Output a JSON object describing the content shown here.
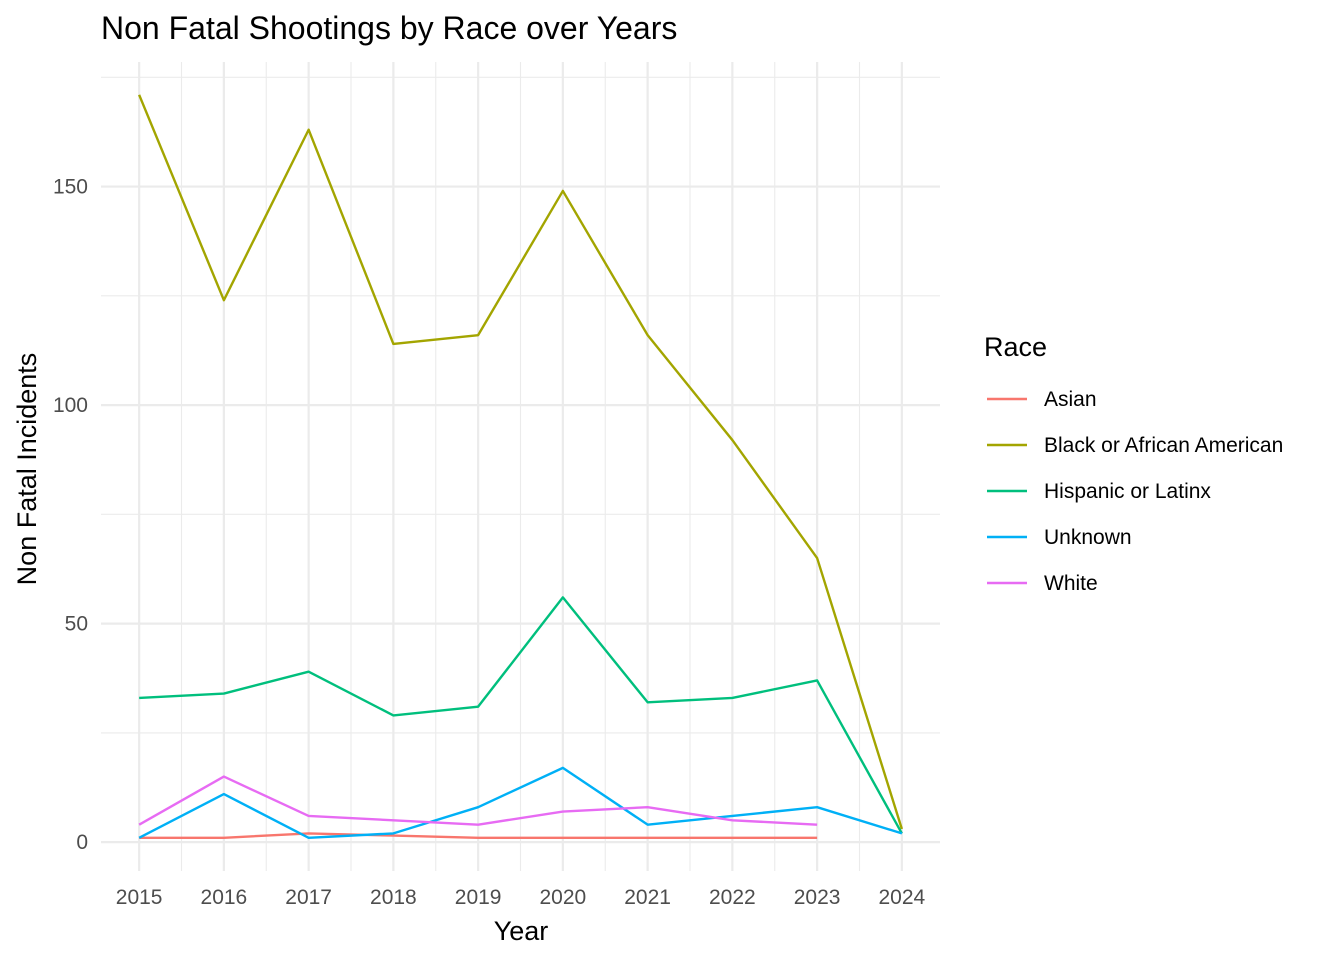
{
  "chart_data": {
    "type": "line",
    "title": "Non Fatal Shootings by Race over Years",
    "xlabel": "Year",
    "ylabel": "Non Fatal Incidents",
    "x": [
      2015,
      2016,
      2017,
      2018,
      2019,
      2020,
      2021,
      2022,
      2023,
      2024
    ],
    "x_tick_labels": [
      "2015",
      "2016",
      "2017",
      "2018",
      "2019",
      "2020",
      "2021",
      "2022",
      "2023",
      "2024"
    ],
    "y_ticks": [
      0,
      50,
      100,
      150
    ],
    "y_tick_labels": [
      "0",
      "50",
      "100",
      "150"
    ],
    "ylim": [
      -6.6,
      178.5
    ],
    "grid": true,
    "legend_title": "Race",
    "legend_position": "right",
    "series": [
      {
        "name": "Asian",
        "color": "#F8766D",
        "x": [
          2015,
          2016,
          2017,
          2018,
          2019,
          2020,
          2021,
          2022,
          2023
        ],
        "values": [
          1,
          1,
          2,
          1.5,
          1,
          1,
          1,
          1,
          1
        ]
      },
      {
        "name": "Black or African American",
        "color": "#A3A500",
        "x": [
          2015,
          2016,
          2017,
          2018,
          2019,
          2020,
          2021,
          2022,
          2023,
          2024
        ],
        "values": [
          171,
          124,
          163,
          114,
          116,
          149,
          116,
          92,
          65,
          3
        ]
      },
      {
        "name": "Hispanic or Latinx",
        "color": "#00BF7D",
        "x": [
          2015,
          2016,
          2017,
          2018,
          2019,
          2020,
          2021,
          2022,
          2023,
          2024
        ],
        "values": [
          33,
          34,
          39,
          29,
          31,
          56,
          32,
          33,
          37,
          2
        ]
      },
      {
        "name": "Unknown",
        "color": "#00B0F6",
        "x": [
          2015,
          2016,
          2017,
          2018,
          2019,
          2020,
          2021,
          2022,
          2023,
          2024
        ],
        "values": [
          1,
          11,
          1,
          2,
          8,
          17,
          4,
          6,
          8,
          2
        ]
      },
      {
        "name": "White",
        "color": "#E76BF3",
        "x": [
          2015,
          2016,
          2017,
          2018,
          2019,
          2020,
          2021,
          2022,
          2023
        ],
        "values": [
          4,
          15,
          6,
          5,
          4,
          7,
          8,
          5,
          4
        ]
      }
    ]
  }
}
